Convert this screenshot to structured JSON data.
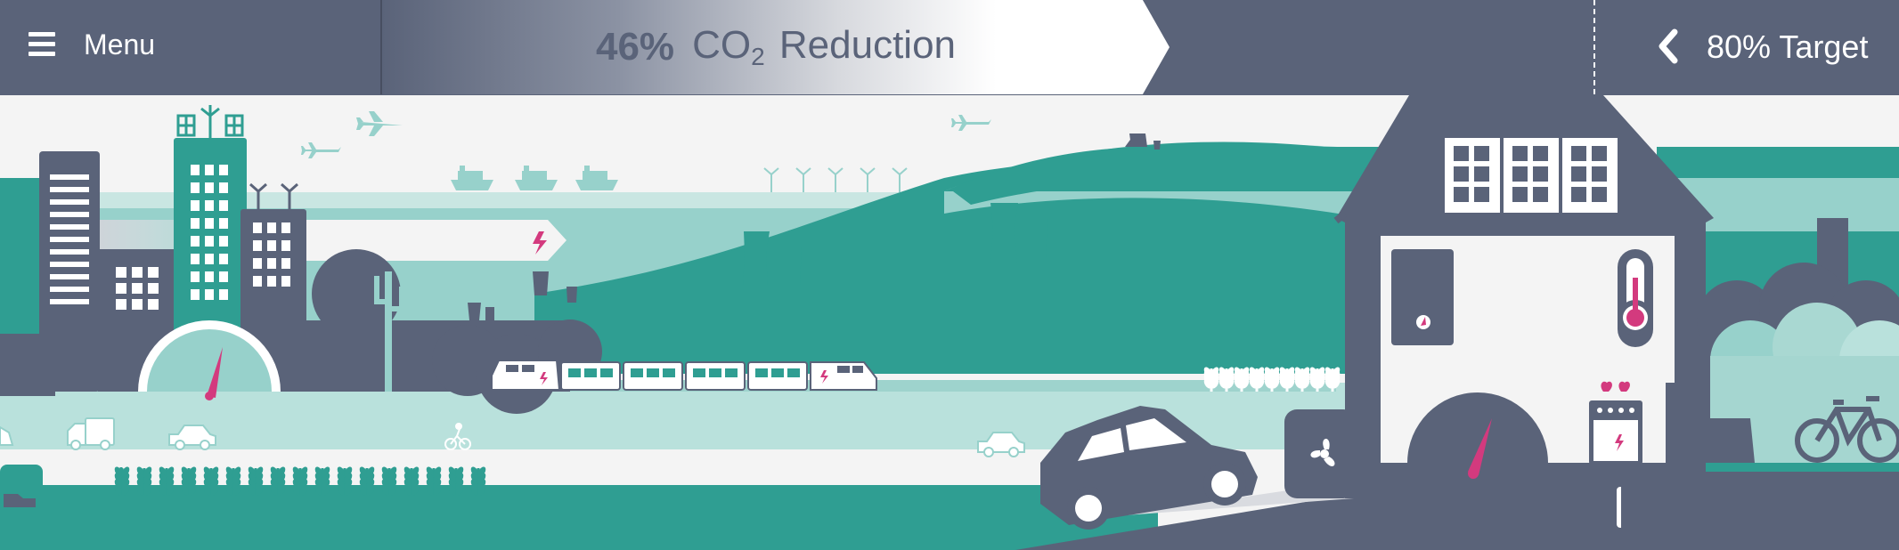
{
  "header": {
    "menu_label": "Menu",
    "progress_percent": "46%",
    "progress_value": 0.46,
    "progress_label_prefix": "CO",
    "progress_label_subscript": "2",
    "progress_label_suffix": "Reduction",
    "target_label": "80% Target"
  },
  "icons": {
    "menu": "hamburger-icon",
    "target": "chevron-left-icon"
  },
  "colors": {
    "header_bg": "#5a6379",
    "dark": "#5a6379",
    "teal": "#2f9e92",
    "teal_light": "#97d1cb",
    "teal_pale": "#b9e1dc",
    "accent": "#d33a7e",
    "background": "#f4f4f4"
  },
  "scene": {
    "city_icons": [
      "office-building-icon",
      "skyscraper-icon",
      "apartment-building-icon",
      "tree-icon",
      "cactus-icon",
      "speedometer-icon"
    ],
    "transport_icons": [
      "airplane-icon",
      "cargo-ship-icon",
      "wind-turbine-icon",
      "electric-train-icon",
      "car-icon",
      "truck-icon",
      "cyclist-icon",
      "bicycle-icon"
    ],
    "energy_icons": [
      "power-plant-icon",
      "lightning-icon",
      "thermometer-icon",
      "stove-icon",
      "fan-icon",
      "radiator-icon",
      "solar-panel-icon",
      "crop-field-icon"
    ]
  }
}
